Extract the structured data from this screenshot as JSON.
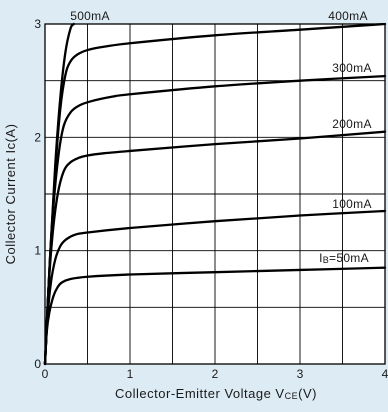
{
  "chart_data": {
    "type": "line",
    "xlabel": "Collector-Emitter Voltage VCE(V)",
    "xlabel_main": "Collector-Emitter Voltage V",
    "xlabel_sub": "CE",
    "xlabel_unit": "(V)",
    "ylabel": "Collector Current Ic(A)",
    "xlim": [
      0,
      4
    ],
    "ylim": [
      0,
      3
    ],
    "xticks": [
      0,
      1,
      2,
      3,
      4
    ],
    "yticks": [
      0,
      1,
      2,
      3
    ],
    "xtick_labels": [
      "0",
      "1",
      "2",
      "3",
      "4"
    ],
    "ytick_labels": [
      "0",
      "1",
      "2",
      "3"
    ],
    "grid": true,
    "background_color": "#ddebf4",
    "plot_background_color": "#ffffff",
    "line_color": "#000000",
    "series": [
      {
        "name": "IB=50mA",
        "label_main": "I",
        "label_sub": "B",
        "label_rest": "=50mA",
        "x": [
          0,
          0.02,
          0.05,
          0.1,
          0.15,
          0.2,
          0.3,
          0.5,
          1.0,
          2.0,
          3.0,
          4.0
        ],
        "y": [
          0,
          0.28,
          0.45,
          0.6,
          0.68,
          0.72,
          0.75,
          0.77,
          0.79,
          0.81,
          0.83,
          0.85
        ]
      },
      {
        "name": "100mA",
        "x": [
          0,
          0.03,
          0.07,
          0.12,
          0.18,
          0.25,
          0.35,
          0.5,
          1.0,
          2.0,
          3.0,
          4.0
        ],
        "y": [
          0,
          0.42,
          0.72,
          0.92,
          1.04,
          1.1,
          1.14,
          1.16,
          1.2,
          1.26,
          1.31,
          1.35
        ]
      },
      {
        "name": "200mA",
        "x": [
          0,
          0.04,
          0.09,
          0.15,
          0.22,
          0.3,
          0.4,
          0.5,
          0.7,
          1.0,
          2.0,
          3.0,
          4.0
        ],
        "y": [
          0,
          0.65,
          1.15,
          1.5,
          1.7,
          1.78,
          1.82,
          1.84,
          1.86,
          1.88,
          1.94,
          1.99,
          2.05
        ]
      },
      {
        "name": "300mA",
        "x": [
          0,
          0.05,
          0.1,
          0.16,
          0.22,
          0.3,
          0.4,
          0.55,
          0.8,
          1.0,
          2.0,
          3.0,
          4.0
        ],
        "y": [
          0,
          0.8,
          1.4,
          1.85,
          2.1,
          2.22,
          2.28,
          2.32,
          2.36,
          2.38,
          2.45,
          2.5,
          2.54
        ]
      },
      {
        "name": "400mA",
        "x": [
          0,
          0.06,
          0.12,
          0.18,
          0.24,
          0.3,
          0.38,
          0.5,
          0.7,
          1.0,
          2.0,
          3.0,
          4.0
        ],
        "y": [
          0,
          0.95,
          1.7,
          2.25,
          2.55,
          2.67,
          2.73,
          2.77,
          2.8,
          2.83,
          2.9,
          2.95,
          3.0
        ]
      },
      {
        "name": "500mA",
        "x": [
          0,
          0.06,
          0.12,
          0.18,
          0.24,
          0.3,
          0.34
        ],
        "y": [
          0,
          0.95,
          1.75,
          2.35,
          2.75,
          2.96,
          3.0
        ]
      }
    ]
  }
}
